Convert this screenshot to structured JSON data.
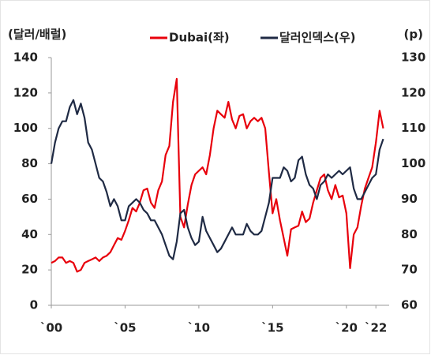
{
  "chart_data": {
    "type": "line",
    "y_label": "(달러/배럴)",
    "y2_label": "(p)",
    "x": [
      2000,
      2000.25,
      2000.5,
      2000.75,
      2001,
      2001.25,
      2001.5,
      2001.75,
      2002,
      2002.25,
      2002.5,
      2002.75,
      2003,
      2003.25,
      2003.5,
      2003.75,
      2004,
      2004.25,
      2004.5,
      2004.75,
      2005,
      2005.25,
      2005.5,
      2005.75,
      2006,
      2006.25,
      2006.5,
      2006.75,
      2007,
      2007.25,
      2007.5,
      2007.75,
      2008,
      2008.25,
      2008.5,
      2008.75,
      2009,
      2009.25,
      2009.5,
      2009.75,
      2010,
      2010.25,
      2010.5,
      2010.75,
      2011,
      2011.25,
      2011.5,
      2011.75,
      2012,
      2012.25,
      2012.5,
      2012.75,
      2013,
      2013.25,
      2013.5,
      2013.75,
      2014,
      2014.25,
      2014.5,
      2014.75,
      2015,
      2015.25,
      2015.5,
      2015.75,
      2016,
      2016.25,
      2016.5,
      2016.75,
      2017,
      2017.25,
      2017.5,
      2017.75,
      2018,
      2018.25,
      2018.5,
      2018.75,
      2019,
      2019.25,
      2019.5,
      2019.75,
      2020,
      2020.25,
      2020.5,
      2020.75,
      2021,
      2021.25,
      2021.5,
      2021.75,
      2022,
      2022.25,
      2022.5
    ],
    "series": [
      {
        "name": "Dubai(좌)",
        "color": "#e8000b",
        "axis": "y",
        "values": [
          24,
          25,
          27,
          27,
          24,
          25,
          24,
          19,
          20,
          24,
          25,
          26,
          27,
          25,
          27,
          28,
          30,
          34,
          38,
          37,
          42,
          48,
          55,
          53,
          58,
          65,
          66,
          58,
          55,
          65,
          70,
          85,
          90,
          115,
          128,
          50,
          44,
          57,
          68,
          74,
          76,
          78,
          74,
          85,
          100,
          110,
          108,
          106,
          115,
          105,
          100,
          107,
          108,
          100,
          104,
          106,
          104,
          106,
          100,
          75,
          52,
          60,
          48,
          38,
          28,
          43,
          44,
          45,
          53,
          47,
          49,
          58,
          65,
          72,
          74,
          65,
          60,
          68,
          61,
          62,
          52,
          21,
          40,
          44,
          56,
          66,
          72,
          78,
          92,
          110,
          100
        ]
      },
      {
        "name": "달러인덱스(우)",
        "color": "#1f2a44",
        "axis": "y2",
        "values": [
          100,
          106,
          110,
          112,
          112,
          116,
          118,
          114,
          117,
          113,
          106,
          104,
          100,
          96,
          95,
          92,
          88,
          90,
          88,
          84,
          84,
          88,
          89,
          90,
          89,
          87,
          86,
          84,
          84,
          82,
          80,
          77,
          74,
          73,
          78,
          86,
          87,
          82,
          79,
          77,
          78,
          85,
          81,
          79,
          77,
          75,
          76,
          78,
          80,
          82,
          80,
          80,
          80,
          83,
          81,
          80,
          80,
          81,
          85,
          89,
          96,
          96,
          96,
          99,
          98,
          95,
          96,
          101,
          102,
          97,
          94,
          93,
          90,
          94,
          95,
          97,
          96,
          97,
          98,
          97,
          98,
          99,
          93,
          90,
          90,
          92,
          94,
          96,
          97,
          104,
          107
        ]
      }
    ],
    "xlim": [
      2000,
      2022.9
    ],
    "xticks": [
      {
        "value": 2000,
        "label": "`00"
      },
      {
        "value": 2005,
        "label": "`05"
      },
      {
        "value": 2010,
        "label": "`10"
      },
      {
        "value": 2015,
        "label": "`15"
      },
      {
        "value": 2020,
        "label": "`20"
      },
      {
        "value": 2022,
        "label": "`22"
      }
    ],
    "ylim": [
      0,
      140
    ],
    "yticks": [
      0,
      20,
      40,
      60,
      80,
      100,
      120,
      140
    ],
    "y2lim": [
      60,
      130
    ],
    "y2ticks": [
      60,
      70,
      80,
      90,
      100,
      110,
      120,
      130
    ]
  }
}
